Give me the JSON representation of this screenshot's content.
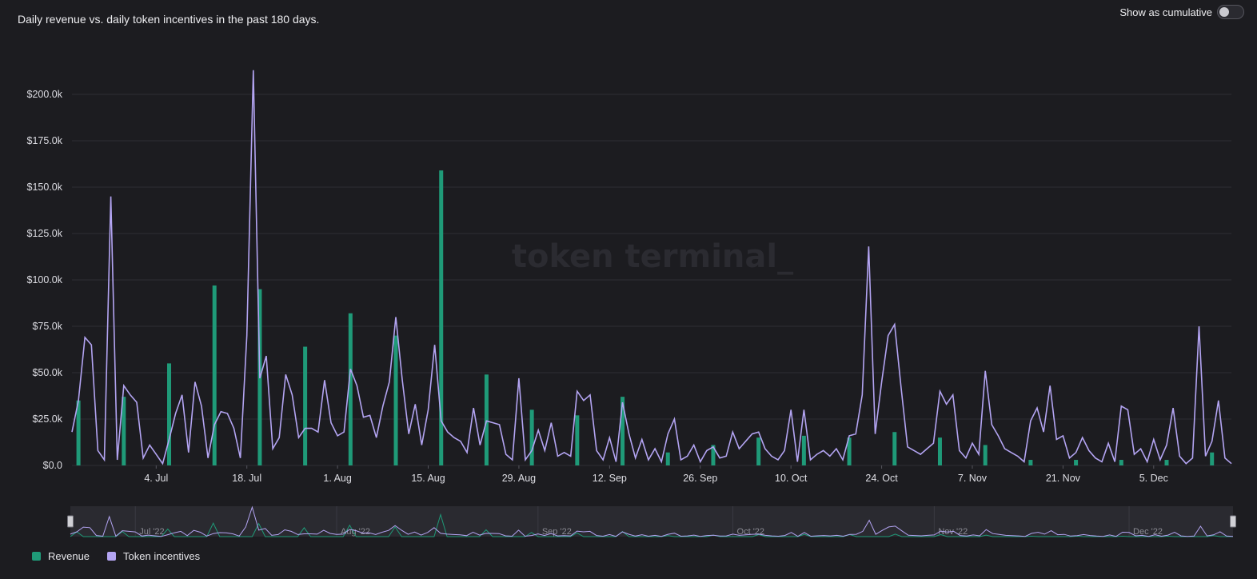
{
  "header": {
    "title": "Daily revenue vs. daily token incentives in the past 180 days.",
    "cumulative_label": "Show as cumulative",
    "cumulative_on": false
  },
  "watermark": "token terminal_",
  "colors": {
    "background": "#1c1c20",
    "revenue": "#1f9a78",
    "token_incentives": "#b3a4f2",
    "grid": "#2e2e35",
    "axis_text": "#dedee4",
    "watermark": "#2b2b31"
  },
  "legend": [
    {
      "label": "Revenue",
      "color": "#1f9a78"
    },
    {
      "label": "Token incentives",
      "color": "#b3a4f2"
    }
  ],
  "chart_data": {
    "type": "bar+line",
    "title": "Daily revenue vs. daily token incentives in the past 180 days.",
    "x_range": [
      "2022-06-21",
      "2022-12-17"
    ],
    "ylim": [
      0,
      200000
    ],
    "y_ticks": [
      0,
      25000,
      50000,
      75000,
      100000,
      125000,
      150000,
      175000,
      200000
    ],
    "y_tick_labels": [
      "$0.0",
      "$25.0k",
      "$50.0k",
      "$75.0k",
      "$100.0k",
      "$125.0k",
      "$150.0k",
      "$175.0k",
      "$200.0k"
    ],
    "x_ticks": [
      "2022-07-04",
      "2022-07-18",
      "2022-08-01",
      "2022-08-15",
      "2022-08-29",
      "2022-09-12",
      "2022-09-26",
      "2022-10-10",
      "2022-10-24",
      "2022-11-07",
      "2022-11-21",
      "2022-12-05"
    ],
    "x_tick_labels": [
      "4. Jul",
      "18. Jul",
      "1. Aug",
      "15. Aug",
      "29. Aug",
      "12. Sep",
      "26. Sep",
      "10. Oct",
      "24. Oct",
      "7. Nov",
      "21. Nov",
      "5. Dec"
    ],
    "grid": true,
    "legend_position": "bottom-left",
    "series": [
      {
        "name": "Revenue",
        "type": "bar",
        "points": [
          [
            "2022-06-22",
            35000
          ],
          [
            "2022-06-29",
            37000
          ],
          [
            "2022-07-06",
            55000
          ],
          [
            "2022-07-13",
            97000
          ],
          [
            "2022-07-20",
            95000
          ],
          [
            "2022-07-27",
            64000
          ],
          [
            "2022-08-03",
            82000
          ],
          [
            "2022-08-10",
            70000
          ],
          [
            "2022-08-17",
            159000
          ],
          [
            "2022-08-24",
            49000
          ],
          [
            "2022-08-31",
            30000
          ],
          [
            "2022-09-07",
            27000
          ],
          [
            "2022-09-14",
            37000
          ],
          [
            "2022-09-21",
            7000
          ],
          [
            "2022-09-28",
            11000
          ],
          [
            "2022-10-05",
            15000
          ],
          [
            "2022-10-12",
            16000
          ],
          [
            "2022-10-19",
            15000
          ],
          [
            "2022-10-26",
            18000
          ],
          [
            "2022-11-02",
            15000
          ],
          [
            "2022-11-09",
            11000
          ],
          [
            "2022-11-16",
            3000
          ],
          [
            "2022-11-23",
            3000
          ],
          [
            "2022-11-30",
            3000
          ],
          [
            "2022-12-07",
            3000
          ],
          [
            "2022-12-14",
            7000
          ]
        ]
      },
      {
        "name": "Token incentives",
        "type": "line",
        "values": [
          18000,
          35000,
          69000,
          65000,
          8000,
          3000,
          145000,
          3000,
          43000,
          38000,
          34000,
          4000,
          11000,
          6000,
          1000,
          14000,
          28000,
          38000,
          7000,
          45000,
          32000,
          4000,
          22000,
          29000,
          28000,
          20000,
          4000,
          70000,
          213000,
          47000,
          59000,
          9000,
          15000,
          49000,
          38000,
          15000,
          20000,
          20000,
          18000,
          46000,
          23000,
          16000,
          18000,
          52000,
          43000,
          26000,
          27000,
          15000,
          32000,
          45000,
          80000,
          46000,
          17000,
          33000,
          11000,
          30000,
          65000,
          24000,
          18000,
          15000,
          13000,
          7000,
          31000,
          11000,
          24000,
          23000,
          22000,
          6000,
          3000,
          47000,
          3000,
          8000,
          19000,
          8000,
          23000,
          5000,
          7000,
          5000,
          40000,
          35000,
          38000,
          8000,
          3000,
          15000,
          2000,
          34000,
          17000,
          4000,
          14000,
          3000,
          9000,
          2000,
          17000,
          25000,
          3000,
          5000,
          11000,
          2000,
          8000,
          10000,
          4000,
          5000,
          18000,
          9000,
          13000,
          17000,
          18000,
          9000,
          5000,
          3000,
          8000,
          30000,
          2000,
          30000,
          3000,
          6000,
          8000,
          5000,
          9000,
          3000,
          16000,
          17000,
          38000,
          118000,
          17000,
          45000,
          70000,
          76000,
          42000,
          10000,
          8000,
          6000,
          9000,
          12000,
          40000,
          33000,
          38000,
          8000,
          4000,
          12000,
          6000,
          51000,
          22000,
          16000,
          9000,
          7000,
          5000,
          2000,
          24000,
          31000,
          18000,
          43000,
          14000,
          16000,
          4000,
          7000,
          15000,
          8000,
          4000,
          2000,
          12000,
          2000,
          32000,
          30000,
          6000,
          9000,
          2000,
          14000,
          3000,
          11000,
          31000,
          5000,
          1000,
          4000,
          75000,
          5000,
          13000,
          35000,
          4000,
          1000
        ]
      }
    ]
  },
  "navigator": {
    "labels": [
      "Jul '22",
      "Aug '22",
      "Sep '22",
      "Oct '22",
      "Nov '22",
      "Dec '22"
    ],
    "label_dates": [
      "2022-07-01",
      "2022-08-01",
      "2022-09-01",
      "2022-10-01",
      "2022-11-01",
      "2022-12-01"
    ]
  }
}
